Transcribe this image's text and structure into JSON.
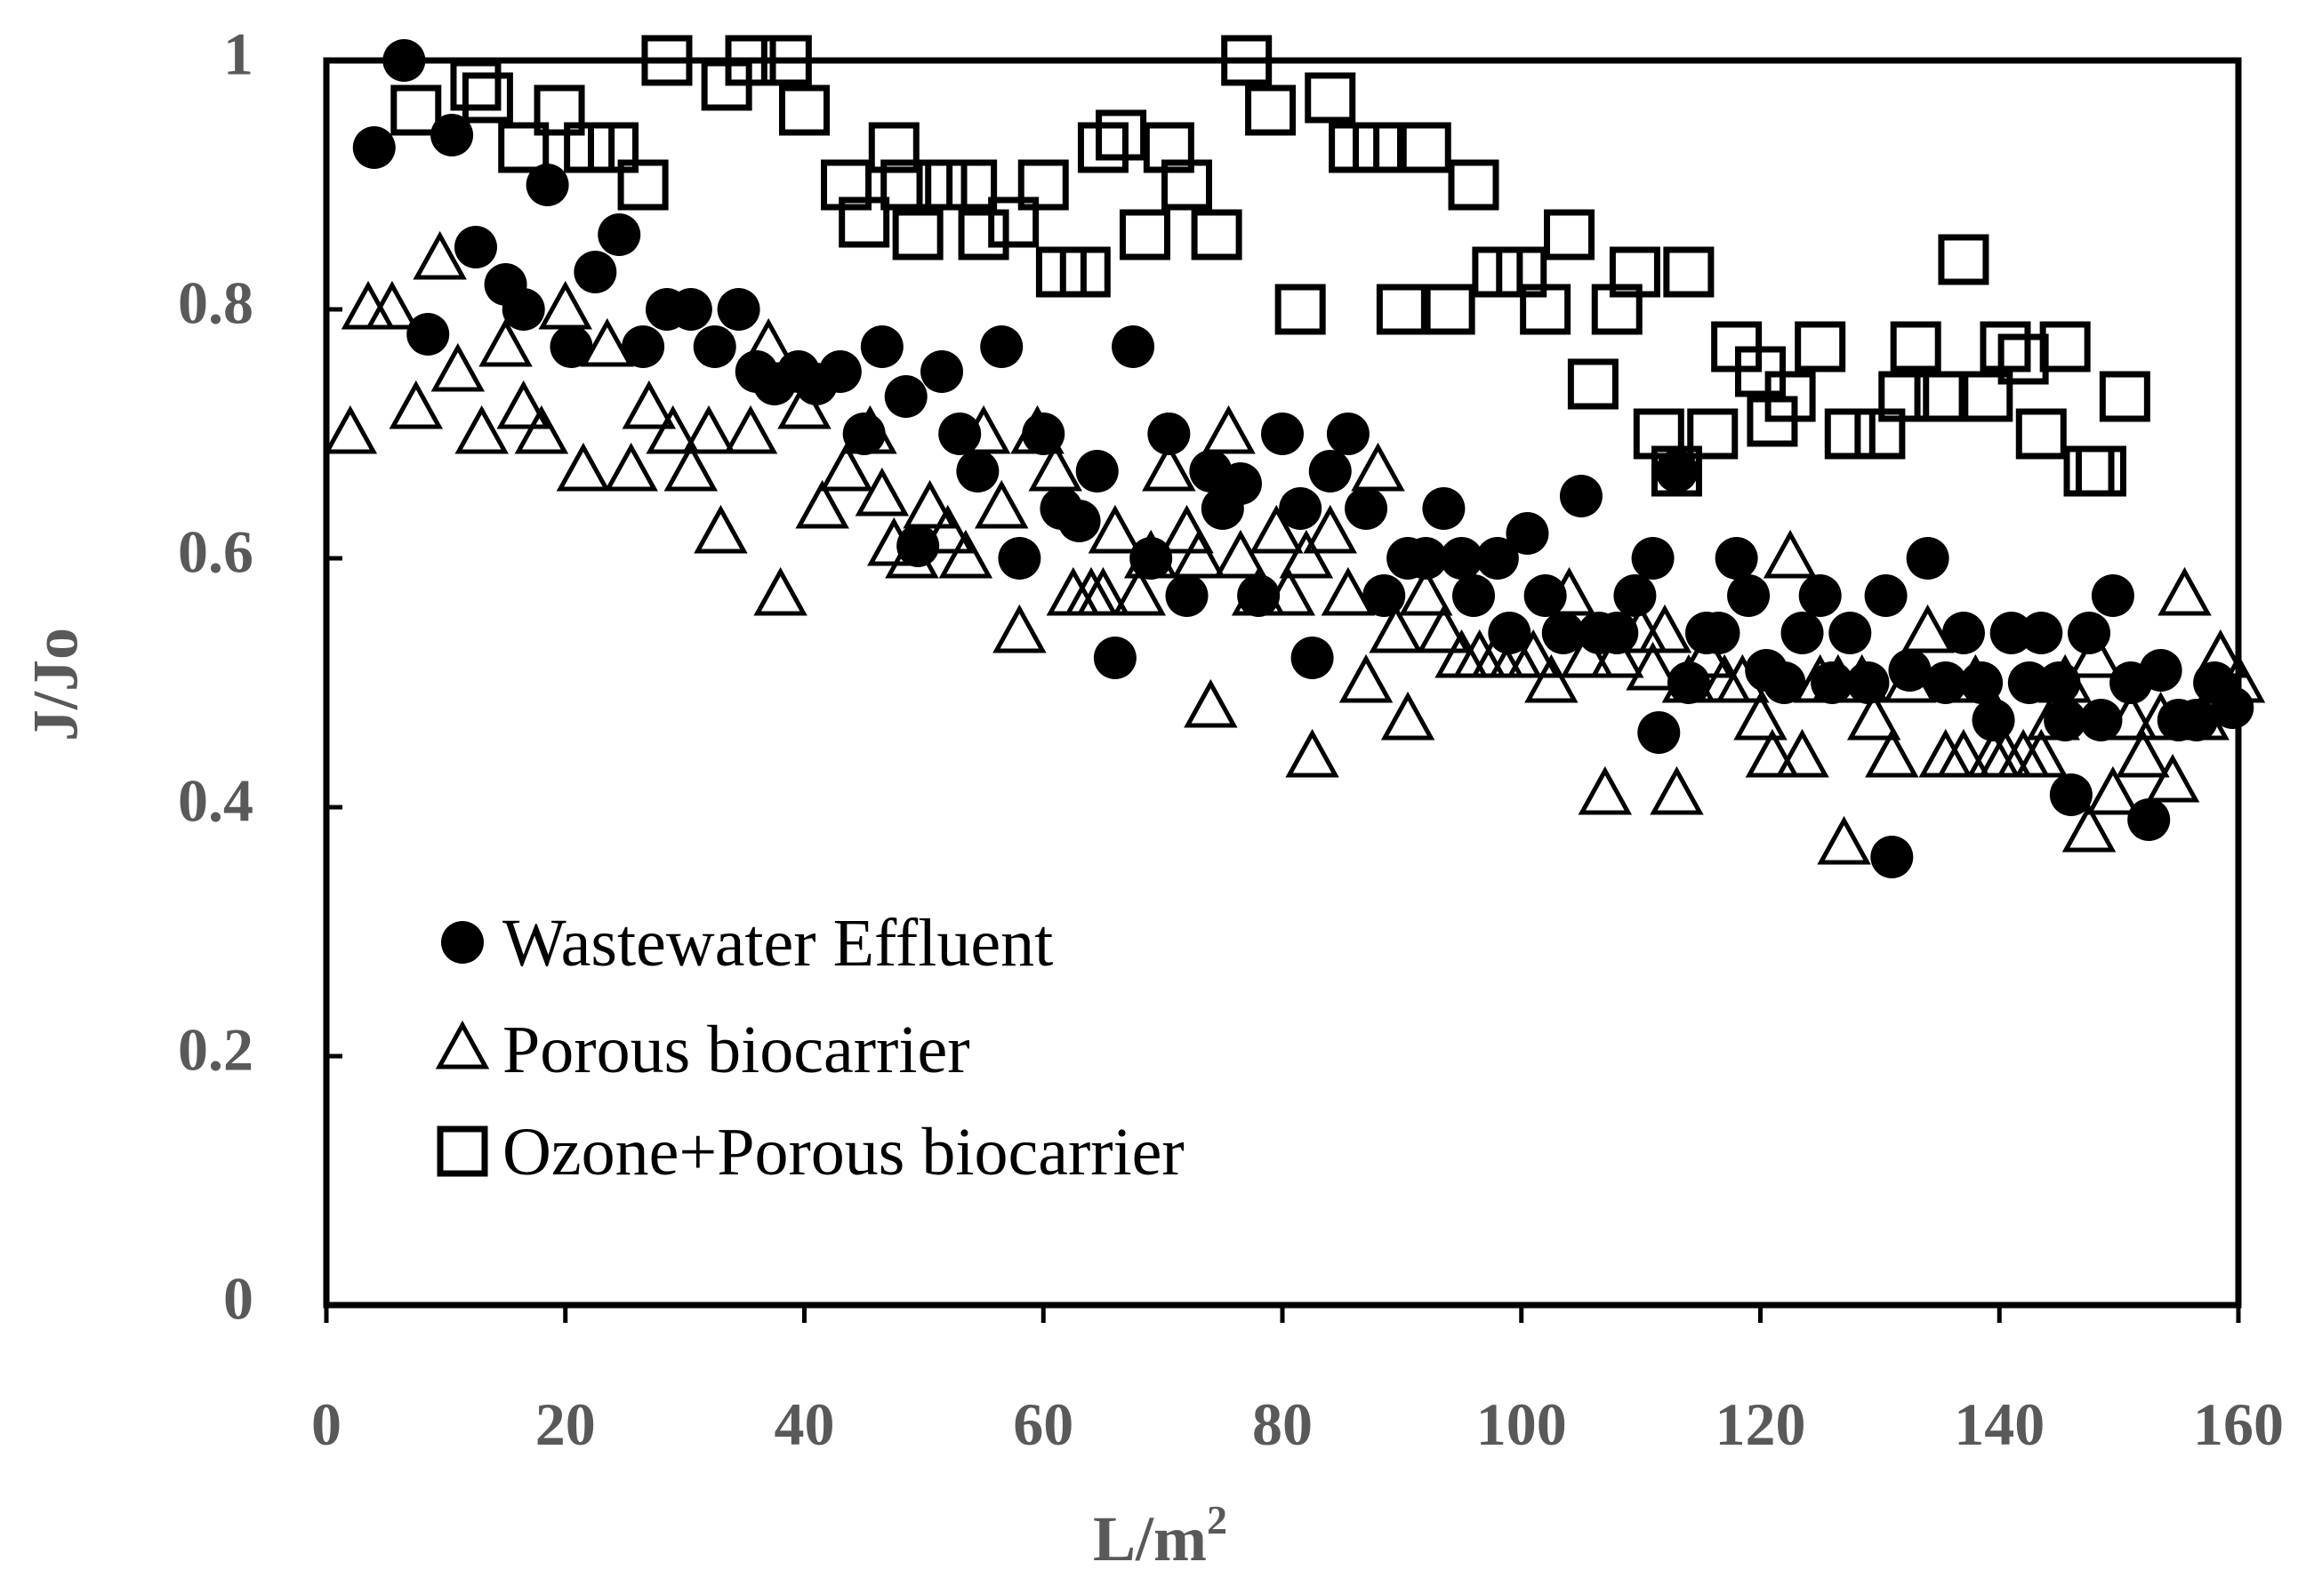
{
  "chart_data": {
    "type": "scatter",
    "title": "",
    "xlabel": "L/m",
    "xlabel_superscript": "2",
    "ylabel": "J/Jo",
    "xlim": [
      0,
      160
    ],
    "ylim": [
      0,
      1
    ],
    "xticks": [
      0,
      20,
      40,
      60,
      80,
      100,
      120,
      140,
      160
    ],
    "yticks": [
      0,
      0.2,
      0.4,
      0.6,
      0.8,
      1
    ],
    "ytick_labels": [
      "0",
      "0.2",
      "0.4",
      "0.6",
      "0.8",
      "1"
    ],
    "grid": false,
    "legend_position": "bottom-left",
    "series": [
      {
        "name": "Wastewater Effluent",
        "marker": "filled-circle",
        "points": [
          [
            4,
            0.93
          ],
          [
            6.5,
            1.0
          ],
          [
            10.5,
            0.94
          ],
          [
            8.5,
            0.78
          ],
          [
            12.5,
            0.85
          ],
          [
            15,
            0.82
          ],
          [
            16.5,
            0.8
          ],
          [
            18.5,
            0.9
          ],
          [
            20.5,
            0.77
          ],
          [
            22.5,
            0.83
          ],
          [
            24.5,
            0.86
          ],
          [
            26.5,
            0.77
          ],
          [
            28.5,
            0.8
          ],
          [
            30.5,
            0.8
          ],
          [
            32.5,
            0.77
          ],
          [
            34.5,
            0.8
          ],
          [
            36,
            0.75
          ],
          [
            37.5,
            0.74
          ],
          [
            39.5,
            0.75
          ],
          [
            41,
            0.74
          ],
          [
            43,
            0.75
          ],
          [
            45,
            0.7
          ],
          [
            46.5,
            0.77
          ],
          [
            48.5,
            0.73
          ],
          [
            49.5,
            0.61
          ],
          [
            51.5,
            0.75
          ],
          [
            53,
            0.7
          ],
          [
            54.5,
            0.67
          ],
          [
            56.5,
            0.77
          ],
          [
            58,
            0.6
          ],
          [
            60,
            0.7
          ],
          [
            61.5,
            0.64
          ],
          [
            63,
            0.63
          ],
          [
            64.5,
            0.67
          ],
          [
            66,
            0.52
          ],
          [
            67.5,
            0.77
          ],
          [
            69,
            0.6
          ],
          [
            70.5,
            0.7
          ],
          [
            72,
            0.57
          ],
          [
            74,
            0.67
          ],
          [
            75,
            0.64
          ],
          [
            76.5,
            0.66
          ],
          [
            78,
            0.57
          ],
          [
            80,
            0.7
          ],
          [
            81.5,
            0.64
          ],
          [
            82.5,
            0.52
          ],
          [
            84,
            0.67
          ],
          [
            85.5,
            0.7
          ],
          [
            87,
            0.64
          ],
          [
            88.5,
            0.57
          ],
          [
            90.5,
            0.6
          ],
          [
            92,
            0.6
          ],
          [
            93.5,
            0.64
          ],
          [
            95,
            0.6
          ],
          [
            96,
            0.57
          ],
          [
            98,
            0.6
          ],
          [
            99,
            0.54
          ],
          [
            100.5,
            0.62
          ],
          [
            102,
            0.57
          ],
          [
            103.5,
            0.54
          ],
          [
            105,
            0.65
          ],
          [
            106.5,
            0.54
          ],
          [
            108,
            0.54
          ],
          [
            109.5,
            0.57
          ],
          [
            111,
            0.6
          ],
          [
            111.5,
            0.46
          ],
          [
            113,
            0.67
          ],
          [
            114,
            0.5
          ],
          [
            115.5,
            0.54
          ],
          [
            116.5,
            0.54
          ],
          [
            118,
            0.6
          ],
          [
            119,
            0.57
          ],
          [
            120.5,
            0.51
          ],
          [
            122,
            0.5
          ],
          [
            123.5,
            0.54
          ],
          [
            125,
            0.57
          ],
          [
            126,
            0.5
          ],
          [
            127.5,
            0.54
          ],
          [
            129,
            0.5
          ],
          [
            130.5,
            0.57
          ],
          [
            131,
            0.36
          ],
          [
            132.5,
            0.51
          ],
          [
            134,
            0.6
          ],
          [
            135.5,
            0.5
          ],
          [
            137,
            0.54
          ],
          [
            138.5,
            0.5
          ],
          [
            139.5,
            0.47
          ],
          [
            141,
            0.54
          ],
          [
            142.5,
            0.5
          ],
          [
            143.5,
            0.54
          ],
          [
            145,
            0.5
          ],
          [
            145.5,
            0.47
          ],
          [
            146,
            0.41
          ],
          [
            147.5,
            0.54
          ],
          [
            148.5,
            0.47
          ],
          [
            149.5,
            0.57
          ],
          [
            151,
            0.5
          ],
          [
            152.5,
            0.39
          ],
          [
            153.5,
            0.51
          ],
          [
            155,
            0.47
          ],
          [
            156.5,
            0.47
          ],
          [
            158,
            0.5
          ],
          [
            159.5,
            0.48
          ]
        ]
      },
      {
        "name": "Porous biocarrier",
        "marker": "open-triangle",
        "points": [
          [
            2,
            0.7
          ],
          [
            3.5,
            0.8
          ],
          [
            5.5,
            0.8
          ],
          [
            7.5,
            0.72
          ],
          [
            9.5,
            0.84
          ],
          [
            11,
            0.75
          ],
          [
            13,
            0.7
          ],
          [
            15,
            0.77
          ],
          [
            16.5,
            0.72
          ],
          [
            18,
            0.7
          ],
          [
            20,
            0.8
          ],
          [
            21.5,
            0.67
          ],
          [
            23.5,
            0.77
          ],
          [
            25.5,
            0.67
          ],
          [
            27,
            0.72
          ],
          [
            29,
            0.7
          ],
          [
            30.5,
            0.67
          ],
          [
            32,
            0.7
          ],
          [
            33,
            0.62
          ],
          [
            35.5,
            0.7
          ],
          [
            37,
            0.77
          ],
          [
            38,
            0.57
          ],
          [
            40,
            0.72
          ],
          [
            41.5,
            0.64
          ],
          [
            43.5,
            0.67
          ],
          [
            45.5,
            0.7
          ],
          [
            46.5,
            0.65
          ],
          [
            47.5,
            0.61
          ],
          [
            49,
            0.6
          ],
          [
            50.5,
            0.64
          ],
          [
            52,
            0.62
          ],
          [
            53.5,
            0.6
          ],
          [
            55,
            0.7
          ],
          [
            56.5,
            0.64
          ],
          [
            58,
            0.54
          ],
          [
            59.5,
            0.7
          ],
          [
            61,
            0.67
          ],
          [
            62.5,
            0.57
          ],
          [
            64,
            0.57
          ],
          [
            65,
            0.57
          ],
          [
            66,
            0.62
          ],
          [
            68,
            0.57
          ],
          [
            69,
            0.6
          ],
          [
            70.5,
            0.67
          ],
          [
            72,
            0.62
          ],
          [
            73,
            0.6
          ],
          [
            74,
            0.48
          ],
          [
            75.5,
            0.7
          ],
          [
            76.5,
            0.6
          ],
          [
            78,
            0.57
          ],
          [
            79.5,
            0.62
          ],
          [
            80.5,
            0.57
          ],
          [
            82,
            0.6
          ],
          [
            82.5,
            0.44
          ],
          [
            84,
            0.62
          ],
          [
            85.5,
            0.57
          ],
          [
            87,
            0.5
          ],
          [
            88,
            0.67
          ],
          [
            89.5,
            0.54
          ],
          [
            90.5,
            0.47
          ],
          [
            92,
            0.57
          ],
          [
            93.5,
            0.54
          ],
          [
            95,
            0.52
          ],
          [
            96.5,
            0.52
          ],
          [
            98,
            0.52
          ],
          [
            99.5,
            0.52
          ],
          [
            101,
            0.52
          ],
          [
            102.5,
            0.5
          ],
          [
            104,
            0.57
          ],
          [
            105.5,
            0.52
          ],
          [
            107,
            0.41
          ],
          [
            108,
            0.52
          ],
          [
            110,
            0.54
          ],
          [
            111,
            0.51
          ],
          [
            112,
            0.54
          ],
          [
            113,
            0.41
          ],
          [
            114,
            0.5
          ],
          [
            115.5,
            0.52
          ],
          [
            117,
            0.5
          ],
          [
            118.5,
            0.5
          ],
          [
            120,
            0.47
          ],
          [
            121,
            0.44
          ],
          [
            122.5,
            0.6
          ],
          [
            123.5,
            0.44
          ],
          [
            125,
            0.5
          ],
          [
            126.5,
            0.5
          ],
          [
            127,
            0.37
          ],
          [
            128.5,
            0.5
          ],
          [
            129.5,
            0.47
          ],
          [
            131,
            0.44
          ],
          [
            132.5,
            0.5
          ],
          [
            134,
            0.54
          ],
          [
            135.5,
            0.44
          ],
          [
            137,
            0.44
          ],
          [
            138,
            0.5
          ],
          [
            139.5,
            0.44
          ],
          [
            140.5,
            0.44
          ],
          [
            142,
            0.44
          ],
          [
            143.5,
            0.44
          ],
          [
            144.5,
            0.47
          ],
          [
            145.5,
            0.5
          ],
          [
            147.5,
            0.38
          ],
          [
            148,
            0.52
          ],
          [
            149.5,
            0.41
          ],
          [
            151,
            0.47
          ],
          [
            152,
            0.44
          ],
          [
            153.5,
            0.47
          ],
          [
            154.5,
            0.42
          ],
          [
            155.5,
            0.57
          ],
          [
            157,
            0.47
          ],
          [
            158.5,
            0.52
          ],
          [
            160,
            0.5
          ]
        ]
      },
      {
        "name": "Ozone+Porous biocarrier",
        "marker": "open-square",
        "points": [
          [
            7.5,
            0.96
          ],
          [
            12.5,
            0.98
          ],
          [
            13.5,
            0.97
          ],
          [
            16.5,
            0.93
          ],
          [
            19.5,
            0.96
          ],
          [
            22,
            0.93
          ],
          [
            24,
            0.93
          ],
          [
            26.5,
            0.9
          ],
          [
            28.5,
            1.0
          ],
          [
            33.5,
            0.98
          ],
          [
            35.5,
            1.0
          ],
          [
            38.5,
            1.0
          ],
          [
            40,
            0.96
          ],
          [
            43.5,
            0.9
          ],
          [
            45,
            0.87
          ],
          [
            47.5,
            0.93
          ],
          [
            48.5,
            0.9
          ],
          [
            49.5,
            0.86
          ],
          [
            51.5,
            0.9
          ],
          [
            54,
            0.9
          ],
          [
            55,
            0.86
          ],
          [
            57.5,
            0.87
          ],
          [
            60,
            0.9
          ],
          [
            61.5,
            0.83
          ],
          [
            63.5,
            0.83
          ],
          [
            65,
            0.93
          ],
          [
            66.5,
            0.94
          ],
          [
            68.5,
            0.86
          ],
          [
            70.5,
            0.93
          ],
          [
            72,
            0.9
          ],
          [
            74.5,
            0.86
          ],
          [
            77,
            1.0
          ],
          [
            79,
            0.96
          ],
          [
            81.5,
            0.8
          ],
          [
            84,
            0.97
          ],
          [
            86,
            0.93
          ],
          [
            88,
            0.93
          ],
          [
            90,
            0.8
          ],
          [
            92,
            0.93
          ],
          [
            94,
            0.8
          ],
          [
            96,
            0.9
          ],
          [
            98,
            0.83
          ],
          [
            100,
            0.83
          ],
          [
            102,
            0.8
          ],
          [
            104,
            0.86
          ],
          [
            106,
            0.74
          ],
          [
            108,
            0.8
          ],
          [
            109.5,
            0.83
          ],
          [
            111.5,
            0.7
          ],
          [
            113,
            0.67
          ],
          [
            114,
            0.83
          ],
          [
            116,
            0.7
          ],
          [
            118,
            0.77
          ],
          [
            120,
            0.75
          ],
          [
            121,
            0.71
          ],
          [
            122.5,
            0.73
          ],
          [
            125,
            0.77
          ],
          [
            127.5,
            0.7
          ],
          [
            130,
            0.7
          ],
          [
            132,
            0.73
          ],
          [
            133,
            0.77
          ],
          [
            135,
            0.73
          ],
          [
            137,
            0.84
          ],
          [
            139,
            0.73
          ],
          [
            140.5,
            0.77
          ],
          [
            142,
            0.76
          ],
          [
            143.5,
            0.7
          ],
          [
            145.5,
            0.77
          ],
          [
            147.5,
            0.67
          ],
          [
            148.5,
            0.67
          ],
          [
            150.5,
            0.73
          ]
        ]
      }
    ]
  }
}
